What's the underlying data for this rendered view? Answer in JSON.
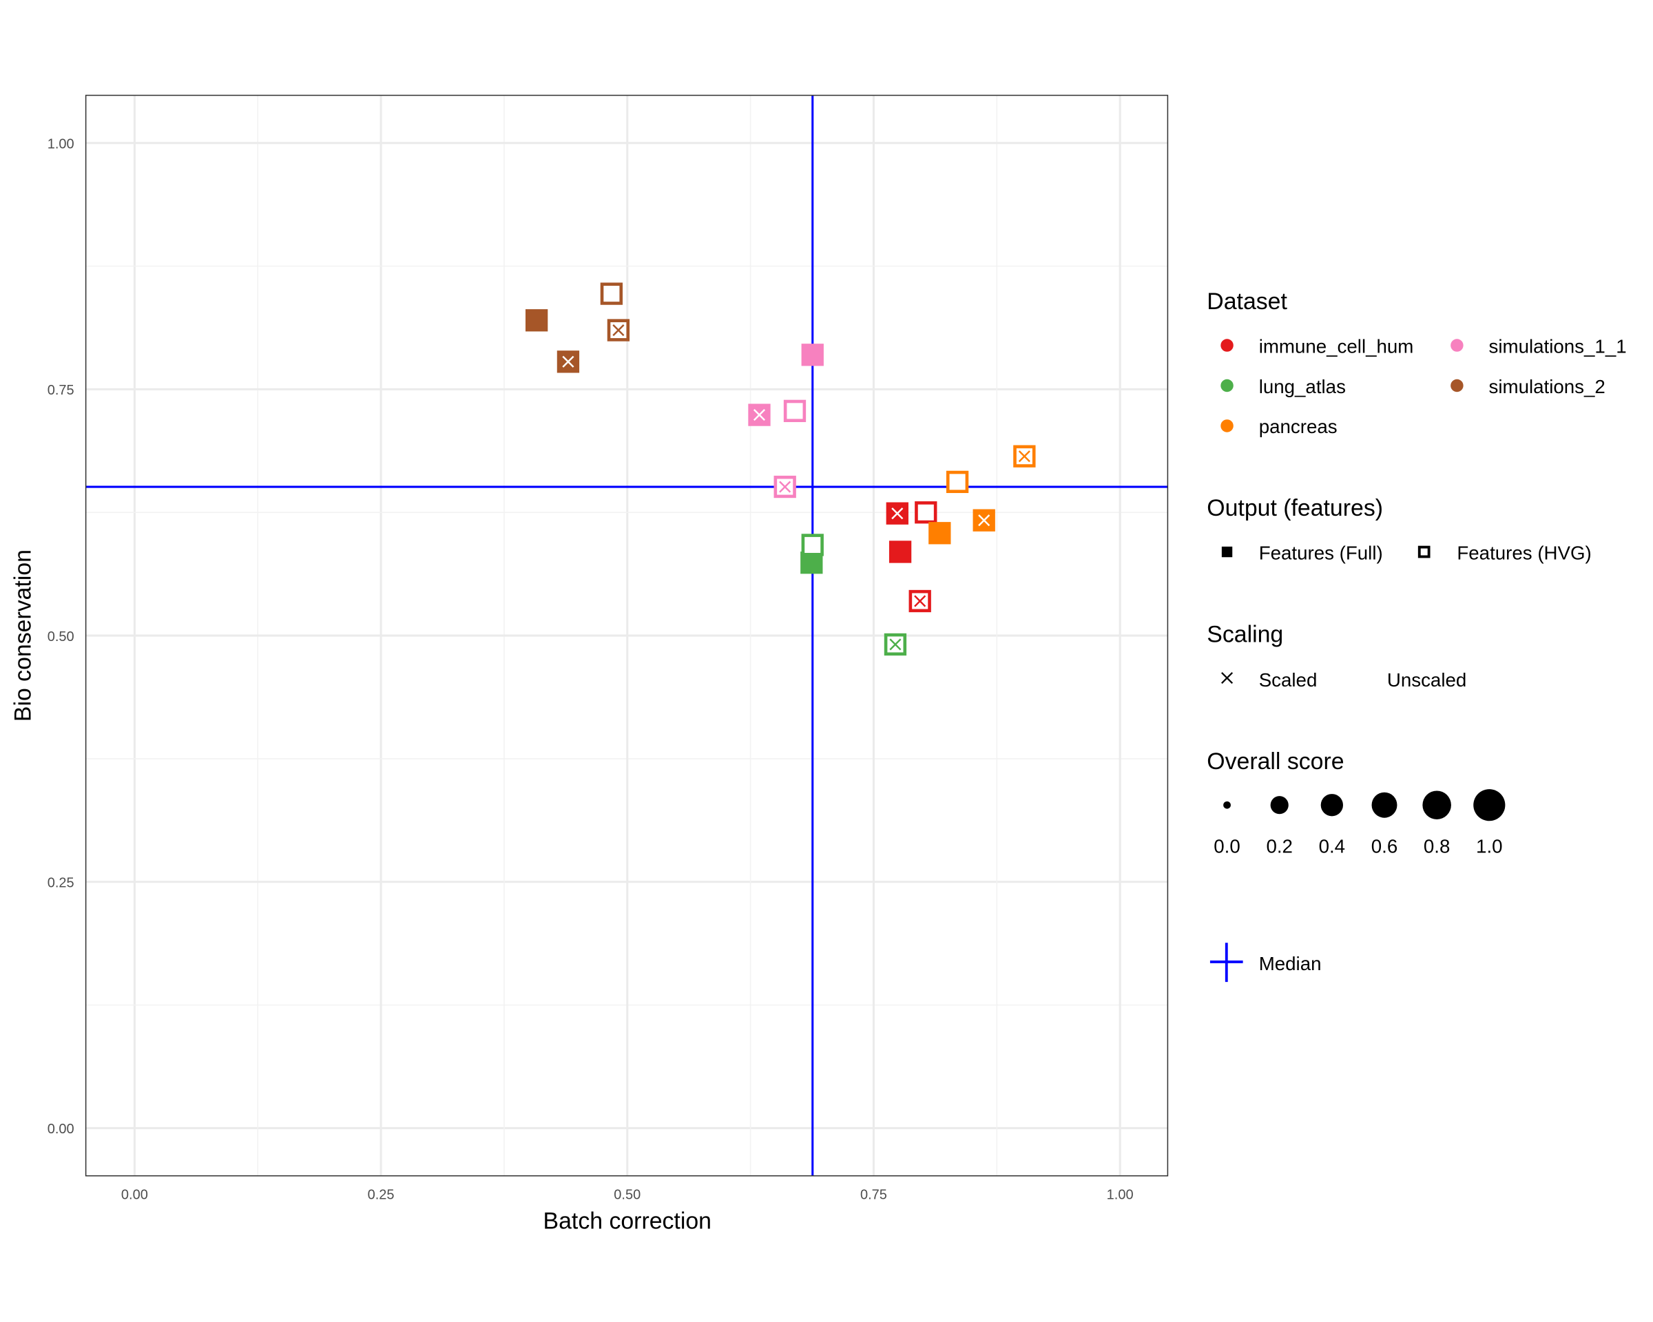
{
  "chart_data": {
    "type": "scatter",
    "xlabel": "Batch correction",
    "ylabel": "Bio conservation",
    "xlim": [
      -0.05,
      1.05
    ],
    "ylim": [
      -0.05,
      1.05
    ],
    "xticks": [
      "0.00",
      "0.25",
      "0.50",
      "0.75",
      "1.00"
    ],
    "yticks": [
      "0.00",
      "0.25",
      "0.50",
      "0.75",
      "1.00"
    ],
    "grid": true,
    "legend_placement": "right",
    "median": {
      "x": 0.688,
      "y": 0.651,
      "label": "Median",
      "color": "#0000FF"
    },
    "datasets": [
      {
        "name": "immune_cell_hum",
        "color": "#E41A1C"
      },
      {
        "name": "lung_atlas",
        "color": "#4DAF4A"
      },
      {
        "name": "pancreas",
        "color": "#FF7F00"
      },
      {
        "name": "simulations_1_1",
        "color": "#F781BF"
      },
      {
        "name": "simulations_2",
        "color": "#A65628"
      }
    ],
    "points": [
      {
        "dataset": "simulations_2",
        "features": "Full",
        "scaled": false,
        "x": 0.408,
        "y": 0.82
      },
      {
        "dataset": "simulations_2",
        "features": "Full",
        "scaled": true,
        "x": 0.44,
        "y": 0.778
      },
      {
        "dataset": "simulations_2",
        "features": "HVG",
        "scaled": false,
        "x": 0.484,
        "y": 0.847
      },
      {
        "dataset": "simulations_2",
        "features": "HVG",
        "scaled": true,
        "x": 0.491,
        "y": 0.81
      },
      {
        "dataset": "simulations_1_1",
        "features": "Full",
        "scaled": false,
        "x": 0.688,
        "y": 0.785
      },
      {
        "dataset": "simulations_1_1",
        "features": "Full",
        "scaled": true,
        "x": 0.634,
        "y": 0.724
      },
      {
        "dataset": "simulations_1_1",
        "features": "HVG",
        "scaled": false,
        "x": 0.67,
        "y": 0.728
      },
      {
        "dataset": "simulations_1_1",
        "features": "HVG",
        "scaled": true,
        "x": 0.66,
        "y": 0.651
      },
      {
        "dataset": "lung_atlas",
        "features": "Full",
        "scaled": false,
        "x": 0.687,
        "y": 0.574
      },
      {
        "dataset": "lung_atlas",
        "features": "HVG",
        "scaled": false,
        "x": 0.688,
        "y": 0.592
      },
      {
        "dataset": "lung_atlas",
        "features": "HVG",
        "scaled": true,
        "x": 0.772,
        "y": 0.491
      },
      {
        "dataset": "immune_cell_hum",
        "features": "Full",
        "scaled": true,
        "x": 0.774,
        "y": 0.624
      },
      {
        "dataset": "immune_cell_hum",
        "features": "Full",
        "scaled": false,
        "x": 0.777,
        "y": 0.585
      },
      {
        "dataset": "immune_cell_hum",
        "features": "HVG",
        "scaled": false,
        "x": 0.803,
        "y": 0.625
      },
      {
        "dataset": "immune_cell_hum",
        "features": "HVG",
        "scaled": true,
        "x": 0.797,
        "y": 0.535
      },
      {
        "dataset": "pancreas",
        "features": "Full",
        "scaled": false,
        "x": 0.817,
        "y": 0.604
      },
      {
        "dataset": "pancreas",
        "features": "Full",
        "scaled": true,
        "x": 0.862,
        "y": 0.617
      },
      {
        "dataset": "pancreas",
        "features": "HVG",
        "scaled": false,
        "x": 0.835,
        "y": 0.656
      },
      {
        "dataset": "pancreas",
        "features": "HVG",
        "scaled": true,
        "x": 0.903,
        "y": 0.682
      }
    ],
    "legend": {
      "dataset_title": "Dataset",
      "output_title": "Output (features)",
      "output_items": [
        "Features (Full)",
        "Features (HVG)"
      ],
      "scaling_title": "Scaling",
      "scaling_items": [
        "Scaled",
        "Unscaled"
      ],
      "score_title": "Overall score",
      "score_items": [
        "0.0",
        "0.2",
        "0.4",
        "0.6",
        "0.8",
        "1.0"
      ],
      "median_label": "Median"
    }
  }
}
